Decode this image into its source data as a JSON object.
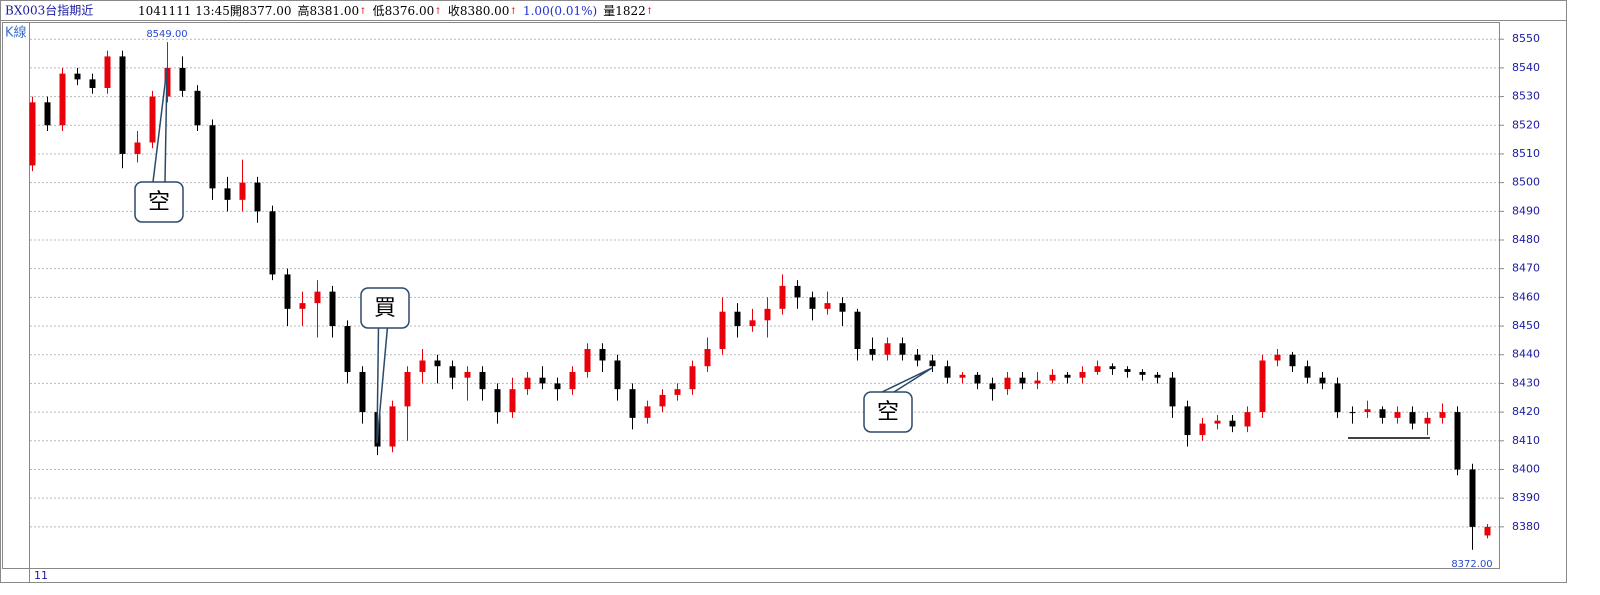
{
  "header": {
    "symbol": "BX003台指期近",
    "items": [
      {
        "text": "1041111 13:45開8377.00",
        "color": "#000"
      },
      {
        "text": "高8381.00",
        "color": "#000",
        "arrow": "↑"
      },
      {
        "text": "低8376.00",
        "color": "#000",
        "arrow": "↑"
      },
      {
        "text": "收8380.00",
        "color": "#000",
        "arrow": "↑"
      },
      {
        "text": "1.00(0.01%)",
        "color": "#2030d0"
      },
      {
        "text": "量1822",
        "color": "#000",
        "arrow": "↑"
      }
    ]
  },
  "chart_data": {
    "type": "candlestick",
    "title": "K線",
    "x_label": "11",
    "up_color": "#e8000b",
    "down_color": "#000000",
    "grid": true,
    "ylim": [
      8366,
      8556
    ],
    "yticks": [
      8380,
      8390,
      8400,
      8410,
      8420,
      8430,
      8440,
      8450,
      8460,
      8470,
      8480,
      8490,
      8500,
      8510,
      8520,
      8530,
      8540,
      8550
    ],
    "open": [
      8506,
      8528,
      8520,
      8538,
      8536,
      8533,
      8544,
      8510,
      8514,
      8530,
      8540,
      8532,
      8520,
      8498,
      8494,
      8500,
      8490,
      8468,
      8456,
      8458,
      8462,
      8450,
      8434,
      8420,
      8408,
      8422,
      8434,
      8438,
      8436,
      8432,
      8434,
      8428,
      8420,
      8428,
      8432,
      8430,
      8428,
      8434,
      8442,
      8438,
      8428,
      8418,
      8422,
      8426,
      8428,
      8436,
      8442,
      8455,
      8450,
      8452,
      8456,
      8464,
      8460,
      8456,
      8458,
      8455,
      8442,
      8440,
      8444,
      8440,
      8438,
      8436,
      8432,
      8433,
      8430,
      8428,
      8432,
      8430,
      8431,
      8433,
      8432,
      8434,
      8436,
      8435,
      8434,
      8433,
      8432,
      8422,
      8412,
      8416,
      8417,
      8415,
      8420,
      8438,
      8440,
      8436,
      8432,
      8430,
      8420,
      8420,
      8421,
      8418,
      8420,
      8416,
      8418,
      8420,
      8400,
      8377
    ],
    "high": [
      8530,
      8530,
      8540,
      8540,
      8538,
      8546,
      8546,
      8518,
      8532,
      8549,
      8544,
      8534,
      8522,
      8502,
      8508,
      8502,
      8492,
      8470,
      8462,
      8466,
      8464,
      8452,
      8436,
      8422,
      8424,
      8436,
      8442,
      8440,
      8438,
      8436,
      8436,
      8430,
      8432,
      8434,
      8436,
      8432,
      8436,
      8444,
      8444,
      8440,
      8430,
      8424,
      8428,
      8430,
      8438,
      8446,
      8460,
      8458,
      8456,
      8460,
      8468,
      8466,
      8462,
      8462,
      8460,
      8456,
      8446,
      8446,
      8446,
      8442,
      8440,
      8438,
      8434,
      8434,
      8432,
      8434,
      8434,
      8434,
      8435,
      8434,
      8436,
      8438,
      8437,
      8436,
      8435,
      8434,
      8434,
      8424,
      8418,
      8419,
      8419,
      8422,
      8440,
      8442,
      8441,
      8438,
      8434,
      8432,
      8422,
      8424,
      8422,
      8422,
      8422,
      8420,
      8423,
      8422,
      8402,
      8381
    ],
    "low": [
      8504,
      8518,
      8518,
      8534,
      8531,
      8531,
      8505,
      8507,
      8512,
      8528,
      8530,
      8518,
      8494,
      8490,
      8490,
      8486,
      8466,
      8450,
      8450,
      8446,
      8446,
      8430,
      8416,
      8405,
      8406,
      8410,
      8430,
      8430,
      8428,
      8424,
      8424,
      8416,
      8418,
      8426,
      8428,
      8424,
      8426,
      8432,
      8434,
      8424,
      8414,
      8416,
      8420,
      8424,
      8426,
      8434,
      8440,
      8446,
      8448,
      8446,
      8454,
      8456,
      8452,
      8454,
      8450,
      8438,
      8438,
      8438,
      8438,
      8436,
      8434,
      8430,
      8430,
      8428,
      8424,
      8426,
      8428,
      8428,
      8430,
      8430,
      8430,
      8433,
      8433,
      8432,
      8431,
      8430,
      8418,
      8408,
      8410,
      8414,
      8413,
      8413,
      8418,
      8436,
      8434,
      8430,
      8428,
      8418,
      8416,
      8418,
      8416,
      8416,
      8414,
      8412,
      8416,
      8398,
      8372,
      8376
    ],
    "close": [
      8528,
      8520,
      8538,
      8536,
      8533,
      8544,
      8510,
      8514,
      8530,
      8540,
      8532,
      8520,
      8498,
      8494,
      8500,
      8490,
      8468,
      8456,
      8458,
      8462,
      8450,
      8434,
      8420,
      8408,
      8422,
      8434,
      8438,
      8436,
      8432,
      8434,
      8428,
      8420,
      8428,
      8432,
      8430,
      8428,
      8434,
      8442,
      8438,
      8428,
      8418,
      8422,
      8426,
      8428,
      8436,
      8442,
      8455,
      8450,
      8452,
      8456,
      8464,
      8460,
      8456,
      8458,
      8455,
      8442,
      8440,
      8444,
      8440,
      8438,
      8436,
      8432,
      8433,
      8430,
      8428,
      8432,
      8430,
      8431,
      8433,
      8432,
      8434,
      8436,
      8435,
      8434,
      8433,
      8432,
      8422,
      8412,
      8416,
      8417,
      8415,
      8420,
      8438,
      8440,
      8436,
      8432,
      8430,
      8420,
      8420,
      8421,
      8418,
      8420,
      8416,
      8418,
      8420,
      8400,
      8380,
      8380
    ],
    "extremes": [
      {
        "index": 9,
        "label": "8549.00",
        "at": "high"
      },
      {
        "index": 96,
        "label": "8372.00",
        "at": "low"
      }
    ],
    "annotations": [
      {
        "text": "空",
        "index": 9
      },
      {
        "text": "買",
        "index": 23
      },
      {
        "text": "空",
        "index": 60
      }
    ]
  }
}
